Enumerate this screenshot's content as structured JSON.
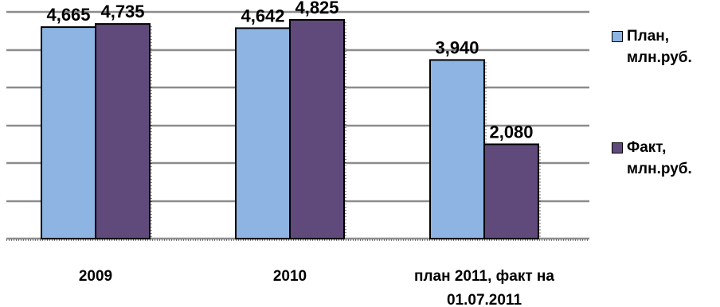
{
  "chart_data": {
    "type": "bar",
    "categories": [
      "2009",
      "2010",
      "план 2011, факт на 01.07.2011"
    ],
    "series": [
      {
        "name": "План, млн.руб.",
        "values": [
          4.665,
          4.642,
          3.94
        ],
        "labels": [
          "4,665",
          "4,642",
          "3,940"
        ],
        "color": "#8db4e2"
      },
      {
        "name": "Факт, млн.руб.",
        "values": [
          4.735,
          4.825,
          2.08
        ],
        "labels": [
          "4,735",
          "4,825",
          "2,080"
        ],
        "color": "#604a7b"
      }
    ],
    "ylim": [
      0,
      5
    ],
    "grid": true,
    "legend_position": "right"
  }
}
